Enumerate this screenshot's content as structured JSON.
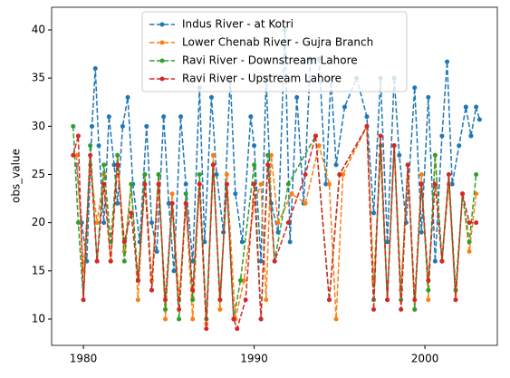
{
  "chart_data": {
    "type": "line",
    "ylabel": "obs_value",
    "xlim": [
      1978.14,
      2004.24
    ],
    "xticks": [
      1980,
      1990,
      2000
    ],
    "ylim": [
      7.27,
      42.35
    ],
    "yticks": [
      10,
      15,
      20,
      25,
      30,
      35,
      40
    ],
    "legend": "upper center",
    "series": [
      {
        "name": "Indus River - at Kotri",
        "color": "#1f77b4",
        "x": [
          1979.6,
          1979.9,
          1980.2,
          1980.5,
          1980.7,
          1980.9,
          1981.2,
          1981.5,
          1981.8,
          1982.0,
          1982.3,
          1982.6,
          1982.9,
          1983.3,
          1983.7,
          1984.0,
          1984.3,
          1984.7,
          1985.0,
          1985.3,
          1985.7,
          1986.0,
          1986.4,
          1986.8,
          1987.1,
          1987.5,
          1987.8,
          1988.2,
          1988.6,
          1988.9,
          1989.3,
          1989.8,
          1990.0,
          1990.4,
          1990.7,
          1991.0,
          1991.4,
          1991.8,
          1992.1,
          1992.5,
          1992.9,
          1993.3,
          1993.8,
          1994.2,
          1994.5,
          1994.8,
          1995.3,
          1996.0,
          1996.6,
          1997.0,
          1997.4,
          1997.8,
          1998.2,
          1998.5,
          1998.9,
          1999.4,
          1999.8,
          2000.2,
          2000.6,
          2001.0,
          2001.3,
          2001.6,
          2002.0,
          2002.4,
          2002.7,
          2003.0,
          2003.2
        ],
        "values": [
          26,
          20,
          16,
          30,
          36,
          28,
          20,
          31,
          26,
          22,
          30,
          33,
          24,
          18,
          30,
          20,
          17,
          31,
          22,
          15,
          31,
          24,
          16,
          34,
          18,
          33,
          25,
          19,
          35,
          23,
          18,
          31,
          28,
          16,
          35,
          22,
          19,
          40,
          18,
          33,
          22,
          37,
          37,
          24,
          35,
          26,
          32,
          35,
          31,
          21,
          35,
          18,
          35,
          27,
          20,
          34,
          19,
          33,
          16,
          29,
          36.7,
          24,
          28,
          32,
          29,
          32,
          30.7
        ]
      },
      {
        "name": "Lower Chenab River - Gujra Branch",
        "color": "#ff7f0e",
        "x": [
          1979.6,
          1980.0,
          1980.4,
          1980.8,
          1981.2,
          1981.6,
          1982.0,
          1982.4,
          1982.8,
          1983.2,
          1983.6,
          1984.0,
          1984.4,
          1984.8,
          1985.2,
          1985.6,
          1986.0,
          1986.4,
          1986.8,
          1987.2,
          1987.6,
          1988.0,
          1988.4,
          1988.9,
          1989.4,
          1990.0,
          1990.4,
          1990.7,
          1991.0,
          1991.4,
          1992.2,
          1993.0,
          1993.8,
          1994.4,
          1994.8,
          1995.2,
          1996.6,
          1997.0,
          1997.4,
          1997.8,
          1998.2,
          1998.6,
          1999.0,
          1999.4,
          1999.8,
          2000.2,
          2000.6,
          2001.0,
          2001.4,
          2001.8,
          2002.2,
          2002.6,
          2003.0
        ],
        "values": [
          27,
          15,
          26,
          20,
          25,
          16,
          27,
          17,
          24,
          12,
          25,
          14,
          25,
          10,
          23,
          12,
          22,
          10,
          24,
          9.5,
          27,
          11,
          25,
          10,
          14,
          22,
          24,
          12,
          27,
          20,
          23,
          22,
          28,
          24,
          10,
          25,
          30,
          14,
          27,
          12,
          28,
          13,
          26,
          11,
          25,
          12,
          27,
          16,
          24,
          12,
          23,
          17,
          23
        ]
      },
      {
        "name": "Ravi River - Downstream Lahore",
        "color": "#2ca02c",
        "x": [
          1979.4,
          1979.7,
          1980.0,
          1980.4,
          1980.8,
          1981.2,
          1981.6,
          1982.0,
          1982.4,
          1982.8,
          1983.2,
          1983.6,
          1984.0,
          1984.4,
          1984.8,
          1985.2,
          1985.6,
          1986.0,
          1986.4,
          1986.8,
          1987.2,
          1987.6,
          1988.0,
          1988.4,
          1988.8,
          1989.2,
          1990.0,
          1990.4,
          1990.8,
          1991.2,
          1992.0,
          1993.6,
          1994.4,
          1995.0,
          1996.6,
          1997.0,
          1997.4,
          1997.8,
          1998.2,
          1998.6,
          1999.0,
          1999.4,
          1999.8,
          2000.2,
          2000.6,
          2001.0,
          2001.4,
          2001.8,
          2002.2,
          2002.6,
          2003.0
        ],
        "values": [
          30,
          20,
          12,
          28,
          16,
          26,
          18,
          27,
          16,
          24,
          14,
          25,
          13,
          25,
          11,
          22,
          10,
          23,
          12,
          25,
          10,
          26,
          12,
          24,
          10,
          14,
          26,
          10,
          27,
          16,
          24,
          29,
          12,
          25,
          30,
          12,
          28,
          12,
          28,
          12,
          26,
          11,
          24,
          13,
          27,
          16,
          25,
          13,
          23,
          18,
          25
        ]
      },
      {
        "name": "Ravi River - Upstream Lahore",
        "color": "#d62728",
        "x": [
          1979.4,
          1979.7,
          1980.0,
          1980.4,
          1980.8,
          1981.2,
          1981.6,
          1982.0,
          1982.4,
          1982.8,
          1983.2,
          1983.6,
          1984.0,
          1984.4,
          1984.8,
          1985.2,
          1985.6,
          1986.0,
          1986.4,
          1986.8,
          1987.2,
          1987.6,
          1988.0,
          1988.4,
          1988.8,
          1989.0,
          1989.5,
          1990.0,
          1990.4,
          1990.8,
          1991.2,
          1992.0,
          1993.0,
          1993.6,
          1994.4,
          1995.0,
          1996.6,
          1997.0,
          1997.4,
          1997.8,
          1998.2,
          1998.6,
          1999.0,
          1999.4,
          1999.8,
          2000.2,
          2000.6,
          2001.0,
          2001.4,
          2001.8,
          2002.2,
          2002.6,
          2003.0
        ],
        "values": [
          27,
          29,
          12,
          27,
          16,
          24,
          16,
          26,
          18,
          21,
          14,
          24,
          13,
          24,
          12,
          22,
          11,
          22,
          13,
          24,
          9,
          26,
          12,
          24,
          10,
          9,
          12,
          24,
          10,
          26,
          16,
          20,
          25,
          29,
          12,
          25,
          30,
          11,
          29,
          12,
          28,
          11,
          26,
          12,
          24,
          14,
          24,
          16,
          25,
          12,
          23,
          20,
          20
        ]
      }
    ]
  }
}
